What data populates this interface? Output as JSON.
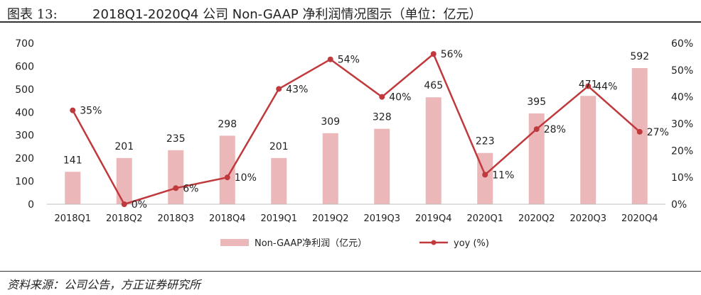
{
  "header": {
    "figure_label": "图表 13:",
    "title": "2018Q1-2020Q4 公司 Non-GAAP 净利润情况图示（单位：亿元）"
  },
  "footer": {
    "source": "资料来源：公司公告，方正证券研究所"
  },
  "colors": {
    "bar": "#ecb7b9",
    "line": "#c0393c",
    "axis": "#bfbfbf",
    "text": "#222222"
  },
  "chart_data": {
    "type": "bar",
    "categories": [
      "2018Q1",
      "2018Q2",
      "2018Q3",
      "2018Q4",
      "2019Q1",
      "2019Q2",
      "2019Q3",
      "2019Q4",
      "2020Q1",
      "2020Q2",
      "2020Q3",
      "2020Q4"
    ],
    "series": [
      {
        "name": "Non-GAAP净利润（亿元）",
        "type": "bar",
        "axis": "left",
        "values": [
          141,
          201,
          235,
          298,
          201,
          309,
          328,
          465,
          223,
          395,
          471,
          592
        ],
        "labels": [
          "141",
          "201",
          "235",
          "298",
          "201",
          "309",
          "328",
          "465",
          "223",
          "395",
          "471",
          "592"
        ]
      },
      {
        "name": "yoy (%)",
        "type": "line",
        "axis": "right",
        "values": [
          35,
          0,
          6,
          10,
          43,
          54,
          40,
          56,
          11,
          28,
          44,
          27
        ],
        "labels": [
          "35%",
          "0%",
          "6%",
          "10%",
          "43%",
          "54%",
          "40%",
          "56%",
          "11%",
          "28%",
          "44%",
          "27%"
        ]
      }
    ],
    "y_left": {
      "min": 0,
      "max": 700,
      "ticks": [
        "0",
        "100",
        "200",
        "300",
        "400",
        "500",
        "600",
        "700"
      ]
    },
    "y_right": {
      "min": 0,
      "max": 60,
      "ticks": [
        "0%",
        "10%",
        "20%",
        "30%",
        "40%",
        "50%",
        "60%"
      ]
    },
    "legend_position": "bottom-center",
    "grid": false
  }
}
